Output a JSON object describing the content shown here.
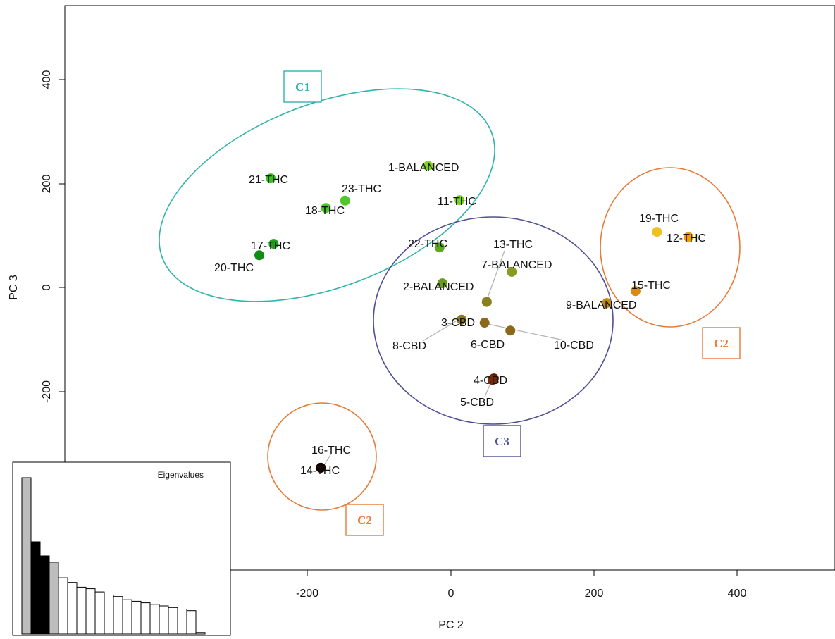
{
  "chart_data": {
    "type": "scatter",
    "xlabel": "PC 2",
    "ylabel": "PC 3",
    "xlim": [
      -540,
      540
    ],
    "ylim": [
      -540,
      540
    ],
    "xticks": [
      "-200",
      "0",
      "200",
      "400"
    ],
    "yticks": [
      "-200",
      "0",
      "200",
      "400"
    ],
    "points": [
      {
        "label": "1-BALANCED",
        "x": -32,
        "y": 234,
        "color": "#7ed321"
      },
      {
        "label": "2-BALANCED",
        "x": -12,
        "y": 8,
        "color": "#6a9a1e"
      },
      {
        "label": "3-CBD",
        "x": 15,
        "y": -62,
        "color": "#8a7a20"
      },
      {
        "label": "4-CBD",
        "x": 60,
        "y": -175,
        "color": "#5a1a0a"
      },
      {
        "label": "5-CBD",
        "x": 58,
        "y": -178,
        "color": "#7a2a0a"
      },
      {
        "label": "6-CBD",
        "x": 47,
        "y": -68,
        "color": "#8a6a1a"
      },
      {
        "label": "7-BALANCED",
        "x": 85,
        "y": 30,
        "color": "#8a9a20"
      },
      {
        "label": "8-CBD",
        "x": 50,
        "y": -28,
        "color": "#8a8020"
      },
      {
        "label": "9-BALANCED",
        "x": 218,
        "y": -30,
        "color": "#c08a10"
      },
      {
        "label": "10-CBD",
        "x": 83,
        "y": -83,
        "color": "#8a6a1a"
      },
      {
        "label": "11-THC",
        "x": 12,
        "y": 168,
        "color": "#74d41c"
      },
      {
        "label": "12-THC",
        "x": 332,
        "y": 97,
        "color": "#f0a000"
      },
      {
        "label": "13-THC",
        "x": 50,
        "y": -28,
        "color": "#8a8020"
      },
      {
        "label": "14-THC",
        "x": -182,
        "y": -347,
        "color": "#120000"
      },
      {
        "label": "15-THC",
        "x": 258,
        "y": -7,
        "color": "#d98a10"
      },
      {
        "label": "16-THC",
        "x": -182,
        "y": -347,
        "color": "#120000"
      },
      {
        "label": "17-THC",
        "x": -248,
        "y": 84,
        "color": "#1f9e1f"
      },
      {
        "label": "18-THC",
        "x": -175,
        "y": 153,
        "color": "#48c628"
      },
      {
        "label": "19-THC",
        "x": 288,
        "y": 107,
        "color": "#f0c020"
      },
      {
        "label": "20-THC",
        "x": -268,
        "y": 62,
        "color": "#118d14"
      },
      {
        "label": "21-THC",
        "x": -252,
        "y": 210,
        "color": "#3cbc24"
      },
      {
        "label": "22-THC",
        "x": -16,
        "y": 77,
        "color": "#5caa1c"
      },
      {
        "label": "23-THC",
        "x": -148,
        "y": 167,
        "color": "#52c72a"
      }
    ],
    "clusters": [
      {
        "name": "C1",
        "color": "#30b3ac"
      },
      {
        "name": "C2",
        "color": "#e87a36"
      },
      {
        "name": "C3",
        "color": "#4f4f95"
      }
    ],
    "inset": {
      "title": "Eigenvalues",
      "type": "bar",
      "values": [
        100,
        59,
        50,
        46,
        36,
        33,
        30,
        29,
        27,
        25,
        24,
        22,
        21,
        20,
        19,
        18,
        17,
        16,
        15,
        1
      ],
      "fills": [
        "#bdbdbd",
        "#000000",
        "#000000",
        "#bdbdbd",
        "#ffffff",
        "#ffffff",
        "#ffffff",
        "#ffffff",
        "#ffffff",
        "#ffffff",
        "#ffffff",
        "#ffffff",
        "#ffffff",
        "#ffffff",
        "#ffffff",
        "#ffffff",
        "#ffffff",
        "#ffffff",
        "#ffffff",
        "#ffffff"
      ]
    }
  }
}
